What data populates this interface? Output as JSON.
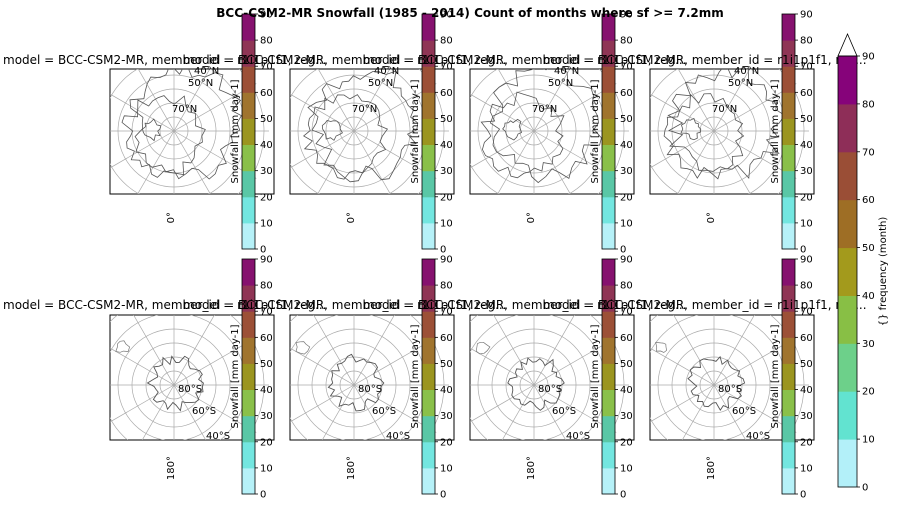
{
  "chart_data": {
    "type": "heatmap",
    "title": "BCC-CSM2-MR Snowfall (1985 - 2014) Count of months where sf >= 7.2mm",
    "panel_titles": [
      "model = BCC-CSM2-MR, member_id = r1i1p1f1, reg...",
      "model = BCC-CSM2-MR, member_id = r1i1p1f1, reg...",
      "model = BCC-CSM2-MR, member_id = r1i1p1f1, reg...",
      "model = BCC-CSM2-MR, member_id = r1i1p1f1, reg..."
    ],
    "panel_colorbar_label": "Snowfall [mm day-1]",
    "panel_colorbar_ticks": [
      "0",
      "10",
      "20",
      "30",
      "40",
      "50",
      "60",
      "70",
      "80",
      "90"
    ],
    "panel_colorbar_colors": [
      "#b6f1f8",
      "#73e6e0",
      "#5ac7a6",
      "#8ac04a",
      "#9b9520",
      "#a0742e",
      "#9c5037",
      "#8f3555",
      "#86126f"
    ],
    "north_labels": [
      "40°N",
      "50°N",
      "70°N"
    ],
    "south_labels": [
      "80°S",
      "60°S",
      "40°S"
    ],
    "north_lon_label": "0°",
    "south_lon_label": "180°",
    "main_colorbar_label": "{} frequency (month)",
    "main_colorbar_ticks": [
      "0",
      "10",
      "20",
      "30",
      "40",
      "50",
      "60",
      "70",
      "80",
      "90"
    ],
    "main_colorbar_colors": [
      "#b3f0f9",
      "#62e3d0",
      "#6dd08a",
      "#88bf45",
      "#a39a1c",
      "#9e6e25",
      "#9a4e36",
      "#8e2e58",
      "#86037a"
    ],
    "main_colorbar_extend": "max",
    "value_range": [
      0,
      90
    ],
    "grid": true
  }
}
